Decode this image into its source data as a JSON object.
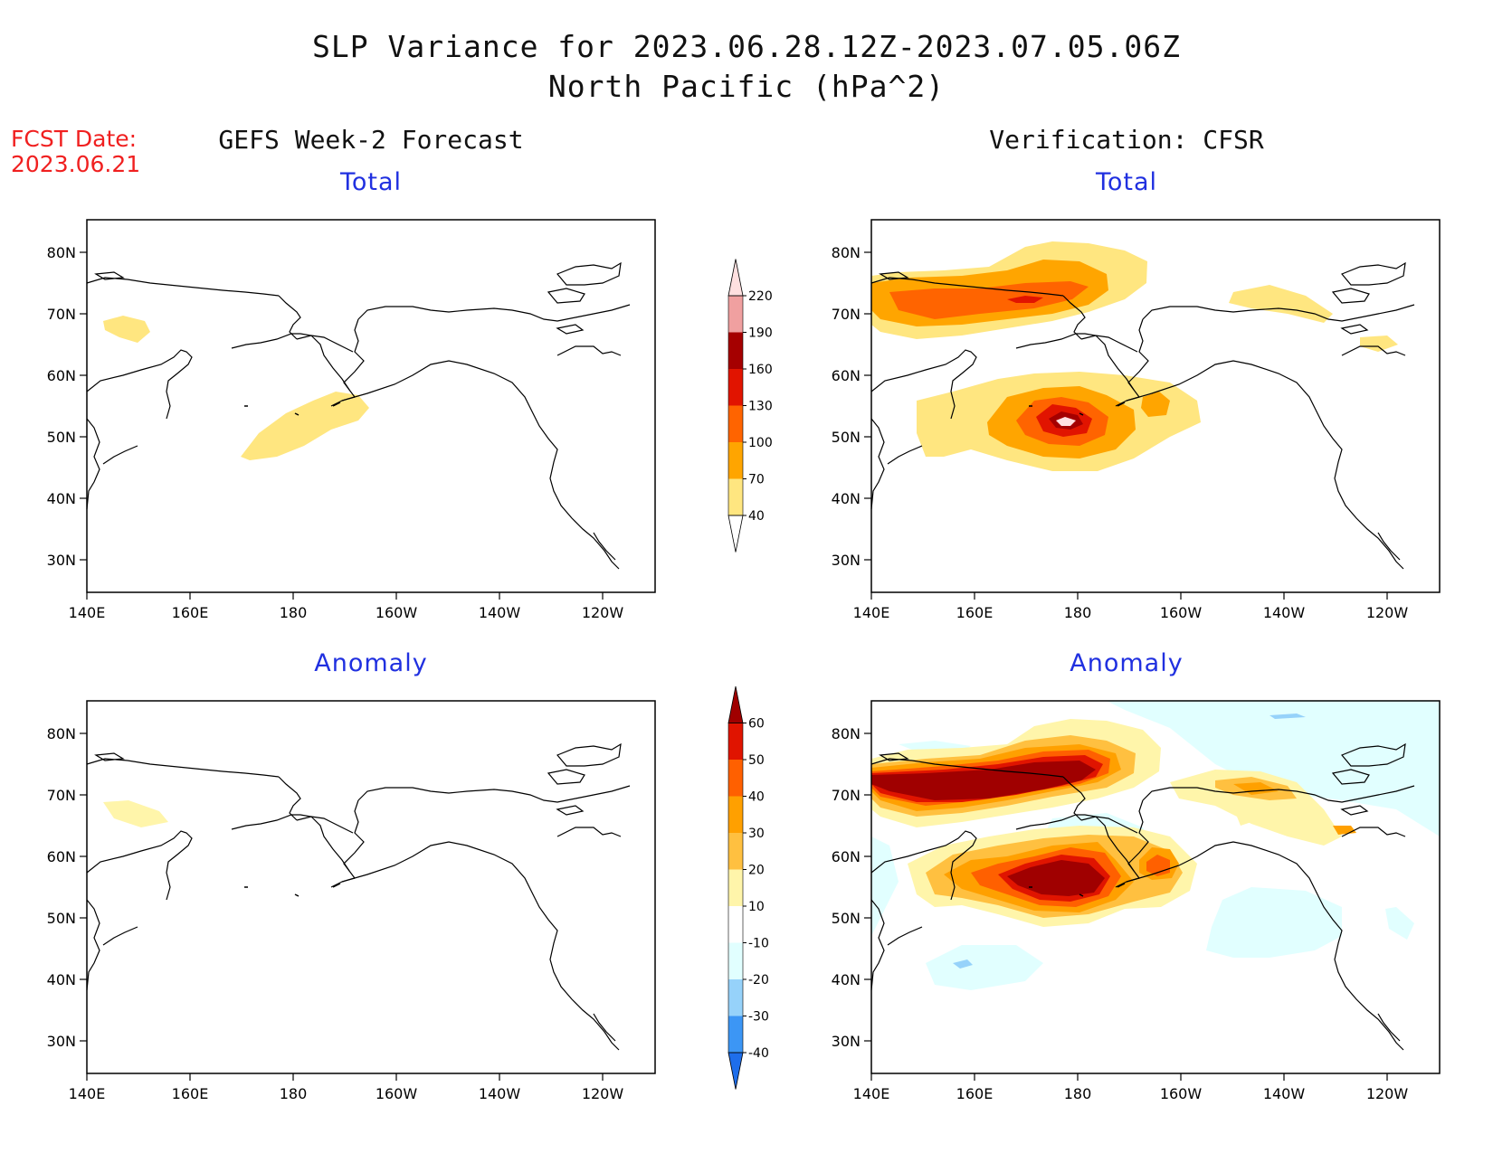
{
  "header": {
    "title_line1": "SLP Variance for 2023.06.28.12Z-2023.07.05.06Z",
    "title_line2": "North Pacific (hPa^2)",
    "fcst_label": "FCST Date:",
    "fcst_date": "2023.06.21"
  },
  "columns": {
    "left": "GEFS Week-2 Forecast",
    "right": "Verification: CFSR"
  },
  "panels": {
    "total": "Total",
    "anomaly": "Anomaly"
  },
  "axes": {
    "lon_labels": [
      "140E",
      "160E",
      "180",
      "160W",
      "140W",
      "120W"
    ],
    "lat_labels": [
      "80N",
      "70N",
      "60N",
      "50N",
      "40N",
      "30N"
    ]
  },
  "colorbars": {
    "total": {
      "levels": [
        "40",
        "70",
        "100",
        "130",
        "160",
        "190",
        "220"
      ],
      "colors": [
        "#ffe680",
        "#ffa500",
        "#ff6400",
        "#e11400",
        "#a50000",
        "#f0a0a0",
        "#ffe0e0"
      ]
    },
    "anomaly": {
      "levels": [
        "-40",
        "-30",
        "-20",
        "-10",
        "10",
        "20",
        "30",
        "40",
        "50",
        "60"
      ],
      "colors": [
        "#1e6eeb",
        "#3c96f5",
        "#96d2fa",
        "#e1ffff",
        "#ffffff",
        "#fff5aa",
        "#ffc040",
        "#ffa000",
        "#ff6000",
        "#e01400",
        "#a00000"
      ]
    }
  }
}
